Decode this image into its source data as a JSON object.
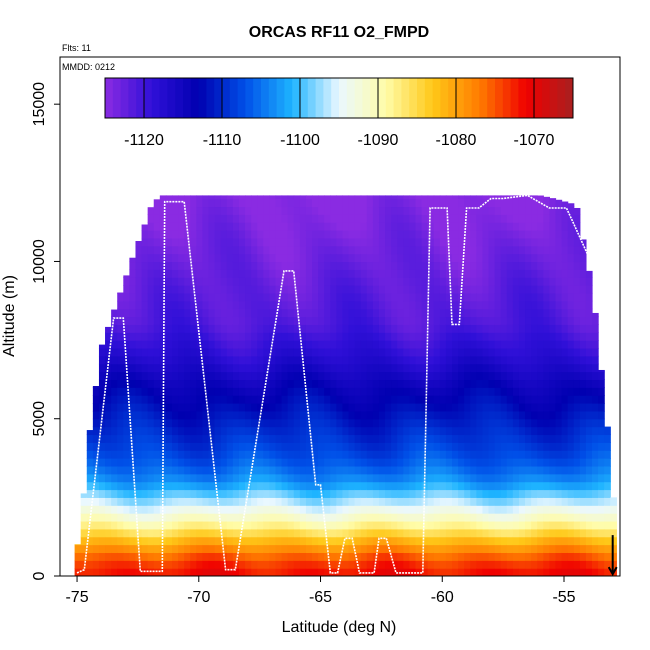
{
  "chart_data": {
    "type": "heatmap",
    "title": "ORCAS RF11 O2_FMPD",
    "annotations": {
      "flights": "Flts: 11",
      "date": "MMDD: 0212"
    },
    "xlabel": "Latitude (deg N)",
    "ylabel": "Altitude (m)",
    "xlim": [
      -75.7,
      -52.7
    ],
    "ylim": [
      0,
      16500
    ],
    "x_ticks": [
      -75,
      -70,
      -65,
      -60,
      -55
    ],
    "x_tick_labels": [
      "-75",
      "-70",
      "-65",
      "-60",
      "-55"
    ],
    "y_ticks": [
      0,
      5000,
      10000,
      15000
    ],
    "y_tick_labels": [
      "0",
      "5000",
      "10000",
      "15000"
    ],
    "colorbar": {
      "range": [
        -1125,
        -1065
      ],
      "ticks": [
        -1120,
        -1110,
        -1100,
        -1090,
        -1080,
        -1070
      ],
      "tick_labels": [
        "-1120",
        "-1110",
        "-1100",
        "-1090",
        "-1080",
        "-1070"
      ],
      "colors": [
        "#8a2be2",
        "#3010d8",
        "#0000b0",
        "#0050e8",
        "#1eb4ff",
        "#eaf8ff",
        "#fffca8",
        "#ffc818",
        "#ff7c00",
        "#f00000",
        "#a82020"
      ]
    },
    "value_profile": {
      "altitude_m": [
        0,
        500,
        1000,
        1500,
        2000,
        2500,
        3000,
        3500,
        4000,
        5000,
        6000,
        7000,
        8000,
        9000,
        10000,
        11000,
        12000
      ],
      "value": [
        -1071,
        -1074,
        -1080,
        -1087,
        -1093,
        -1098,
        -1103,
        -1106,
        -1108,
        -1111,
        -1114,
        -1118,
        -1121,
        -1122,
        -1123,
        -1124,
        -1125
      ]
    },
    "domain_envelope": {
      "latitude": [
        -75.1,
        -74.8,
        -74.5,
        -74.0,
        -73.6,
        -73.0,
        -72.6,
        -72.3,
        -72.0,
        -71.6,
        -61.5,
        -56.0,
        -55.4,
        -54.5,
        -54.2,
        -53.8,
        -53.6,
        -53.3,
        -53.0
      ],
      "top_altitude_m": [
        300,
        2000,
        4500,
        7300,
        8200,
        9500,
        10400,
        11000,
        11700,
        12100,
        12100,
        12100,
        12000,
        11800,
        10600,
        9000,
        7300,
        5500,
        2500
      ]
    },
    "flight_track": {
      "latitude": [
        -75.0,
        -74.7,
        -73.5,
        -73.1,
        -72.4,
        -71.5,
        -71.4,
        -70.6,
        -68.9,
        -68.5,
        -66.5,
        -66.1,
        -65.2,
        -65.0,
        -64.6,
        -64.3,
        -64.0,
        -63.7,
        -63.4,
        -62.8,
        -62.6,
        -62.3,
        -61.9,
        -60.8,
        -60.5,
        -59.8,
        -59.6,
        -59.3,
        -59.0,
        -58.5,
        -58.0,
        -57.5,
        -56.5,
        -55.6,
        -55.2,
        -54.9,
        -54.6,
        -53.9,
        -53.5,
        -53.2,
        -53.0
      ],
      "altitude_m": [
        100,
        200,
        8200,
        8200,
        150,
        150,
        11900,
        11900,
        200,
        200,
        9700,
        9700,
        2900,
        2900,
        100,
        100,
        1200,
        1200,
        100,
        100,
        1200,
        1200,
        100,
        100,
        11700,
        11700,
        8000,
        8000,
        11700,
        11700,
        12000,
        12000,
        12100,
        11700,
        11700,
        11700,
        11200,
        10000,
        9000,
        7000,
        5000
      ]
    },
    "arrow_marker": {
      "latitude": -53.0,
      "direction": "down"
    },
    "legend": "colorbar-top-inset",
    "grid": false
  }
}
